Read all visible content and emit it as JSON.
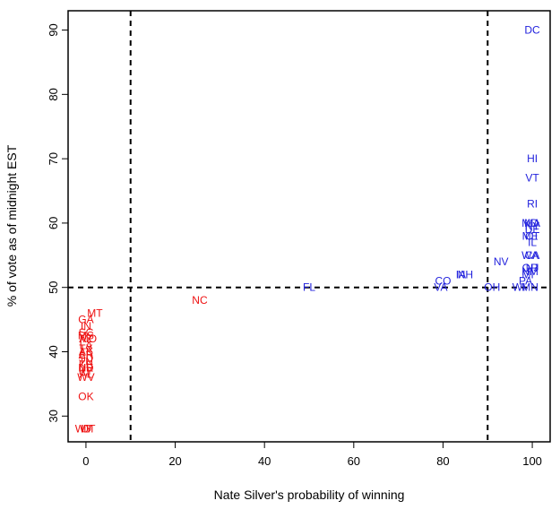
{
  "chart_data": {
    "type": "scatter",
    "title": "",
    "xlabel": "Nate Silver's probability of winning",
    "ylabel": "% of vote as of midnight EST",
    "xlim": [
      -4,
      104
    ],
    "ylim": [
      26,
      93
    ],
    "xticks": [
      0,
      20,
      40,
      60,
      80,
      100
    ],
    "yticks": [
      30,
      40,
      50,
      60,
      70,
      80,
      90
    ],
    "grid": false,
    "reference_lines": {
      "vertical": [
        10,
        90
      ],
      "horizontal": [
        50
      ],
      "style": "dashed"
    },
    "colors": {
      "democrat": "#2222dd",
      "republican": "#ee1111"
    },
    "series": [
      {
        "points": [
          {
            "label": "DC",
            "x": 100,
            "y": 90
          },
          {
            "label": "HI",
            "x": 100,
            "y": 70
          },
          {
            "label": "VT",
            "x": 100,
            "y": 67
          },
          {
            "label": "RI",
            "x": 100,
            "y": 63
          },
          {
            "label": "MD",
            "x": 99.5,
            "y": 60
          },
          {
            "label": "MA",
            "x": 100,
            "y": 60
          },
          {
            "label": "NY",
            "x": 100,
            "y": 59.5
          },
          {
            "label": "DE",
            "x": 100,
            "y": 59
          },
          {
            "label": "ME",
            "x": 99.5,
            "y": 58
          },
          {
            "label": "CT",
            "x": 100,
            "y": 58
          },
          {
            "label": "IL",
            "x": 100,
            "y": 57
          },
          {
            "label": "WA",
            "x": 99.5,
            "y": 55
          },
          {
            "label": "CA",
            "x": 100,
            "y": 55
          },
          {
            "label": "OR",
            "x": 99.5,
            "y": 53
          },
          {
            "label": "NM",
            "x": 99.5,
            "y": 52.5
          },
          {
            "label": "MI",
            "x": 99,
            "y": 52
          },
          {
            "label": "NJ",
            "x": 100,
            "y": 53
          },
          {
            "label": "PA",
            "x": 98.5,
            "y": 51
          },
          {
            "label": "WI",
            "x": 97,
            "y": 50
          },
          {
            "label": "MN",
            "x": 99.5,
            "y": 50
          },
          {
            "label": "NV",
            "x": 93,
            "y": 54
          },
          {
            "label": "IA",
            "x": 84,
            "y": 52
          },
          {
            "label": "NH",
            "x": 85,
            "y": 52
          },
          {
            "label": "CO",
            "x": 80,
            "y": 51
          },
          {
            "label": "VA",
            "x": 79.5,
            "y": 50
          },
          {
            "label": "OH",
            "x": 91,
            "y": 50
          },
          {
            "label": "FL",
            "x": 50,
            "y": 50
          }
        ]
      },
      {
        "points": [
          {
            "label": "NC",
            "x": 25.5,
            "y": 48
          },
          {
            "label": "MT",
            "x": 2,
            "y": 46
          },
          {
            "label": "GA",
            "x": 0,
            "y": 45
          },
          {
            "label": "IN",
            "x": 0,
            "y": 44
          },
          {
            "label": "SC",
            "x": 0,
            "y": 43
          },
          {
            "label": "MS",
            "x": 0,
            "y": 42.5
          },
          {
            "label": "AZ",
            "x": 0,
            "y": 42
          },
          {
            "label": "MO",
            "x": 0.5,
            "y": 42
          },
          {
            "label": "LA",
            "x": 0,
            "y": 41
          },
          {
            "label": "TX",
            "x": 0,
            "y": 40.5
          },
          {
            "label": "AK",
            "x": 0,
            "y": 40
          },
          {
            "label": "AR",
            "x": 0,
            "y": 39.5
          },
          {
            "label": "SD",
            "x": 0,
            "y": 39
          },
          {
            "label": "TN",
            "x": 0,
            "y": 38.5
          },
          {
            "label": "KS",
            "x": 0,
            "y": 38
          },
          {
            "label": "ND",
            "x": 0,
            "y": 37.5
          },
          {
            "label": "NE",
            "x": 0,
            "y": 37.5
          },
          {
            "label": "KY",
            "x": 0,
            "y": 37
          },
          {
            "label": "AL",
            "x": 0,
            "y": 36.5
          },
          {
            "label": "WV",
            "x": 0,
            "y": 36
          },
          {
            "label": "OK",
            "x": 0,
            "y": 33
          },
          {
            "label": "WY",
            "x": -0.5,
            "y": 28
          },
          {
            "label": "UT",
            "x": 0.5,
            "y": 28
          },
          {
            "label": "ID",
            "x": 0,
            "y": 28
          }
        ]
      }
    ]
  }
}
